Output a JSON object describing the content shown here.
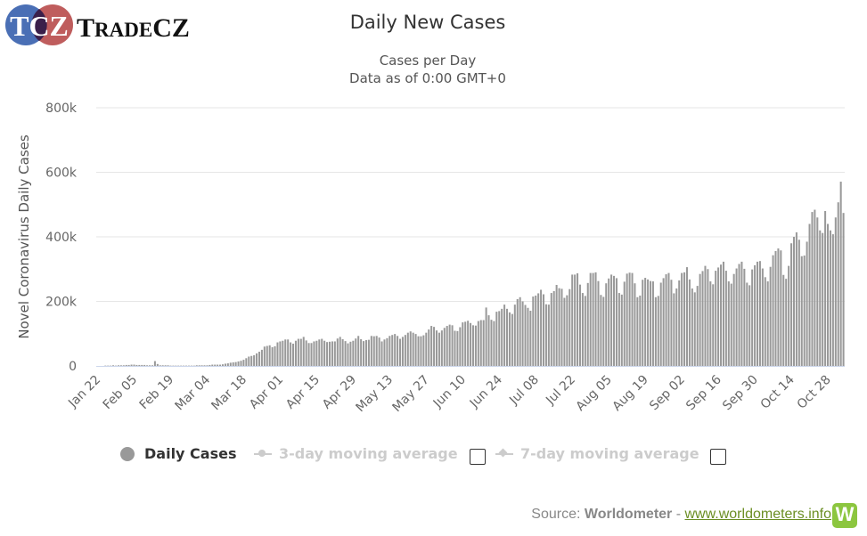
{
  "logo": {
    "mark": "TCZ",
    "name": "TradeCZ"
  },
  "chart_data": {
    "type": "bar",
    "title": "Daily New Cases",
    "subtitle": [
      "Cases per Day",
      "Data as of 0:00 GMT+0"
    ],
    "ylabel": "Novel Coronavirus Daily Cases",
    "xlabel": "",
    "ylim": [
      0,
      800000
    ],
    "yticks": [
      0,
      200000,
      400000,
      600000,
      800000
    ],
    "ytick_labels": [
      "0",
      "200k",
      "400k",
      "600k",
      "800k"
    ],
    "x_start": "Jan 22",
    "x_end": "Nov 03",
    "xtick_labels": [
      "Jan 22",
      "Feb 05",
      "Feb 19",
      "Mar 04",
      "Mar 18",
      "Apr 01",
      "Apr 15",
      "Apr 29",
      "May 13",
      "May 27",
      "Jun 10",
      "Jun 24",
      "Jul 08",
      "Jul 22",
      "Aug 05",
      "Aug 19",
      "Sep 02",
      "Sep 16",
      "Sep 30",
      "Oct 14",
      "Oct 28"
    ],
    "xtick_every_days": 14,
    "grid": true,
    "bar_color": "#999999",
    "series": [
      {
        "name": "Daily Cases",
        "values": [
          0,
          0,
          0,
          1000,
          1000,
          1000,
          2000,
          1000,
          2000,
          2000,
          2000,
          3000,
          3000,
          4000,
          4000,
          3000,
          3000,
          3000,
          3000,
          2000,
          2000,
          2000,
          15000,
          6000,
          2000,
          2000,
          2000,
          2000,
          1000,
          1000,
          1000,
          1000,
          1000,
          1000,
          1000,
          1000,
          1000,
          1000,
          2000,
          2000,
          2000,
          2000,
          2000,
          3000,
          4000,
          4000,
          4000,
          4000,
          5000,
          7000,
          8000,
          10000,
          11000,
          12000,
          14000,
          16000,
          19000,
          24000,
          29000,
          31000,
          33000,
          39000,
          44000,
          50000,
          60000,
          62000,
          64000,
          58000,
          61000,
          73000,
          76000,
          78000,
          82000,
          82000,
          73000,
          69000,
          78000,
          84000,
          84000,
          90000,
          79000,
          71000,
          71000,
          76000,
          78000,
          82000,
          84000,
          78000,
          74000,
          75000,
          76000,
          76000,
          85000,
          90000,
          83000,
          77000,
          70000,
          75000,
          78000,
          85000,
          93000,
          83000,
          77000,
          80000,
          81000,
          93000,
          92000,
          93000,
          88000,
          76000,
          82000,
          86000,
          93000,
          96000,
          99000,
          93000,
          84000,
          90000,
          96000,
          103000,
          107000,
          103000,
          99000,
          92000,
          92000,
          95000,
          103000,
          113000,
          124000,
          121000,
          110000,
          103000,
          110000,
          118000,
          124000,
          128000,
          126000,
          109000,
          108000,
          120000,
          135000,
          137000,
          140000,
          133000,
          126000,
          125000,
          139000,
          142000,
          142000,
          181000,
          157000,
          143000,
          139000,
          168000,
          170000,
          177000,
          190000,
          177000,
          166000,
          161000,
          190000,
          207000,
          213000,
          200000,
          189000,
          180000,
          171000,
          215000,
          218000,
          225000,
          236000,
          222000,
          191000,
          190000,
          226000,
          232000,
          251000,
          241000,
          239000,
          211000,
          219000,
          238000,
          283000,
          283000,
          287000,
          252000,
          226000,
          217000,
          257000,
          288000,
          288000,
          290000,
          263000,
          220000,
          214000,
          256000,
          271000,
          283000,
          279000,
          272000,
          226000,
          221000,
          261000,
          286000,
          289000,
          288000,
          256000,
          213000,
          218000,
          267000,
          273000,
          268000,
          263000,
          262000,
          213000,
          217000,
          258000,
          272000,
          284000,
          288000,
          267000,
          225000,
          240000,
          265000,
          288000,
          290000,
          306000,
          268000,
          240000,
          228000,
          248000,
          285000,
          294000,
          310000,
          300000,
          262000,
          253000,
          295000,
          305000,
          314000,
          323000,
          295000,
          262000,
          255000,
          285000,
          302000,
          316000,
          323000,
          301000,
          258000,
          250000,
          299000,
          312000,
          323000,
          325000,
          302000,
          275000,
          262000,
          307000,
          343000,
          356000,
          364000,
          358000,
          282000,
          270000,
          310000,
          380000,
          400000,
          414000,
          391000,
          340000,
          342000,
          385000,
          440000,
          477000,
          484000,
          460000,
          420000,
          412000,
          480000,
          440000,
          420000,
          408000,
          460000,
          507000,
          571000,
          474000
        ]
      }
    ],
    "legend": {
      "placement": "bottom",
      "items": [
        {
          "label": "Daily Cases",
          "active": true
        },
        {
          "label": "3-day moving average",
          "active": false
        },
        {
          "label": "7-day moving average",
          "active": false
        }
      ]
    }
  },
  "source": {
    "prefix": "Source: ",
    "name": "Worldometer",
    "sep": " - ",
    "link": "www.worldometers.info",
    "logo_letter": "W"
  }
}
